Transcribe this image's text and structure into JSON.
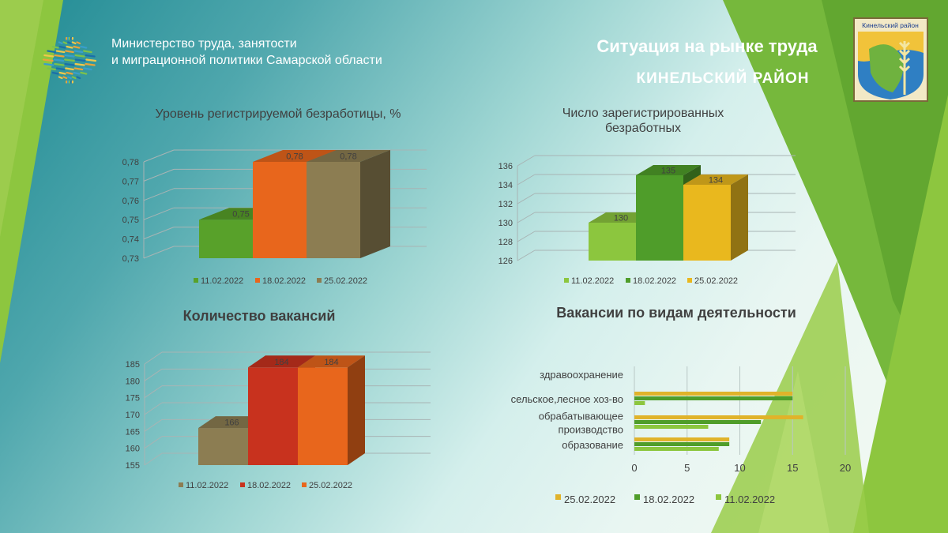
{
  "header": {
    "ministry_line1": "Министерство труда, занятости",
    "ministry_line2": "и миграционной политики  Самарской области",
    "title_line1": "Ситуация на рынке труда",
    "title_line2": "КИНЕЛЬСКИЙ  РАЙОН",
    "coat_label": "Кинельский район"
  },
  "colors": {
    "green_dark": "#58a12a",
    "orange": "#e8661c",
    "olive": "#8c7d52",
    "lime": "#8cc63e",
    "green_mid": "#4f9d2a",
    "yellow": "#e9b81e",
    "red": "#c8321e",
    "gold": "#e0b32a"
  },
  "chart_data": [
    {
      "type": "bar",
      "title": "Уровень регистрируемой  безработицы, %",
      "categories": [
        "11.02.2022",
        "18.02.2022",
        "25.02.2022"
      ],
      "values": [
        0.75,
        0.78,
        0.78
      ],
      "value_labels": [
        "0,75",
        "0,78",
        "0,78"
      ],
      "ylim": [
        0.73,
        0.78
      ],
      "yticks": [
        "0,73",
        "0,74",
        "0,75",
        "0,76",
        "0,77",
        "0,78"
      ],
      "legend": [
        "11.02.2022",
        "18.02.2022",
        "25.02.2022"
      ],
      "legend_position": "bottom"
    },
    {
      "type": "bar",
      "title_lines": [
        "Число зарегистрированных",
        "безработных"
      ],
      "categories": [
        "11.02.2022",
        "18.02.2022",
        "25.02.2022"
      ],
      "values": [
        130,
        135,
        134
      ],
      "value_labels": [
        "130",
        "135",
        "134"
      ],
      "ylim": [
        126,
        136
      ],
      "yticks": [
        "126",
        "128",
        "130",
        "132",
        "134",
        "136"
      ],
      "legend": [
        "11.02.2022",
        "18.02.2022",
        "25.02.2022"
      ],
      "legend_position": "bottom"
    },
    {
      "type": "bar",
      "title": "Количество вакансий",
      "categories": [
        "11.02.2022",
        "18.02.2022",
        "25.02.2022"
      ],
      "values": [
        166,
        184,
        184
      ],
      "value_labels": [
        "166",
        "184",
        "184"
      ],
      "ylim": [
        155,
        185
      ],
      "yticks": [
        "155",
        "160",
        "165",
        "170",
        "175",
        "180",
        "185"
      ],
      "legend": [
        "11.02.2022",
        "18.02.2022",
        "25.02.2022"
      ],
      "legend_position": "bottom"
    },
    {
      "type": "bar",
      "orientation": "horizontal",
      "title": "Вакансии по видам деятельности",
      "categories": [
        "здравоохранение",
        "сельское,лесное хоз-во",
        "обрабатывающее производство",
        "образование"
      ],
      "category_lines": [
        [
          "здравоохранение"
        ],
        [
          "сельское,лесное хоз-во"
        ],
        [
          "обрабатывающее",
          "производство"
        ],
        [
          "образование"
        ]
      ],
      "series": [
        {
          "name": "25.02.2022",
          "values": [
            0,
            15,
            16,
            9
          ]
        },
        {
          "name": "18.02.2022",
          "values": [
            0,
            15,
            12,
            9
          ]
        },
        {
          "name": "11.02.2022",
          "values": [
            0,
            1,
            7,
            8
          ]
        }
      ],
      "xlim": [
        0,
        20
      ],
      "xticks": [
        "0",
        "5",
        "10",
        "15",
        "20"
      ],
      "legend_position": "bottom"
    }
  ]
}
